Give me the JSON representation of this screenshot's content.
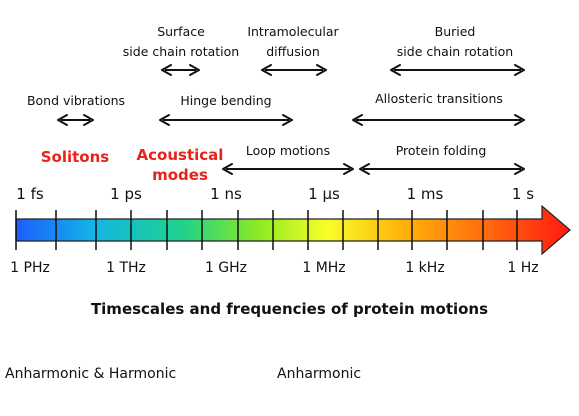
{
  "colors": {
    "accent_red": "#e8231b",
    "gradient": [
      "#1e5cff",
      "#13b5e6",
      "#1fd28a",
      "#8fea22",
      "#f8ff28",
      "#ffb20a",
      "#ff6a0f",
      "#ff1a0f"
    ]
  },
  "processes": [
    {
      "id": "surface",
      "lines": [
        "Surface",
        "side chain rotation"
      ]
    },
    {
      "id": "intramolecular",
      "lines": [
        "Intramolecular",
        "diffusion"
      ]
    },
    {
      "id": "buried",
      "lines": [
        "Buried",
        "side chain rotation"
      ]
    },
    {
      "id": "bond",
      "lines": [
        "Bond vibrations"
      ]
    },
    {
      "id": "hinge",
      "lines": [
        "Hinge bending"
      ]
    },
    {
      "id": "allosteric",
      "lines": [
        "Allosteric transitions"
      ]
    },
    {
      "id": "loop",
      "lines": [
        "Loop motions"
      ]
    },
    {
      "id": "folding",
      "lines": [
        "Protein folding"
      ]
    }
  ],
  "red_labels": [
    {
      "id": "solitons",
      "lines": [
        "Solitons"
      ]
    },
    {
      "id": "acoustical",
      "lines": [
        "Acoustical",
        "modes"
      ]
    }
  ],
  "time_labels": [
    "1 fs",
    "1 ps",
    "1 ns",
    "1 µs",
    "1 ms",
    "1 s"
  ],
  "freq_labels": [
    "1 PHz",
    "1 THz",
    "1 GHz",
    "1 MHz",
    "1 kHz",
    "1 Hz"
  ],
  "title": "Timescales and frequencies of protein motions",
  "footer": {
    "left": "Anharmonic  & Harmonic",
    "right": "Anharmonic"
  }
}
